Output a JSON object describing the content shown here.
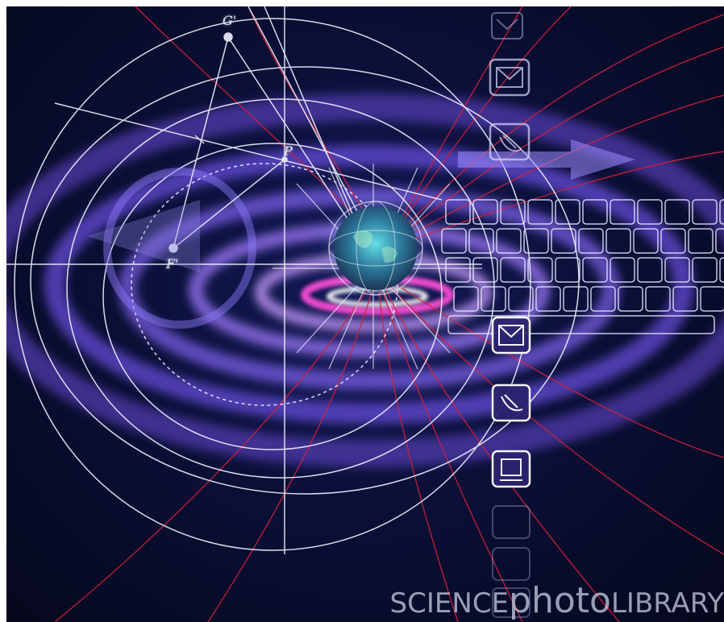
{
  "image": {
    "background_color": "#05081c",
    "accent_colors": {
      "swirl_purple": "#7b5cff",
      "swirl_pink": "#ff4fd8",
      "red_lines": "#d6203a",
      "white_lines": "#f0f2ff"
    },
    "subject": {
      "center_icon": "globe-icon",
      "side_icons": [
        "envelope-icon",
        "envelope-icon",
        "satellite-dish-icon",
        "envelope-icon",
        "satellite-dish-icon",
        "monitor-icon"
      ],
      "keyboard_icon": "keyboard-icon",
      "arrow_icon": "arrow-right-icon"
    }
  },
  "diagram_labels": {
    "g_prime": "G'",
    "p": "P",
    "f_prime": "F'"
  },
  "watermark": {
    "part1": "SCIENCE",
    "part2": "photo",
    "part3": "LIBRARY"
  }
}
